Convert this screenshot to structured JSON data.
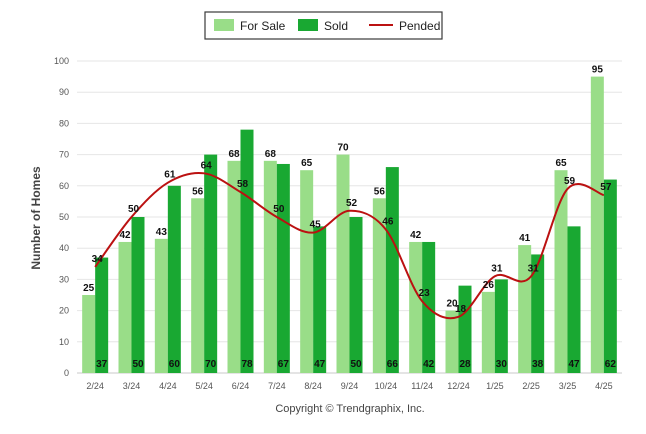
{
  "chart_data": {
    "type": "bar",
    "ylabel": "Number of Homes",
    "ylim": [
      0,
      100
    ],
    "yticks": [
      0,
      10,
      20,
      30,
      40,
      50,
      60,
      70,
      80,
      90,
      100
    ],
    "grid": true,
    "legend_position": "top",
    "categories": [
      "2/24",
      "3/24",
      "4/24",
      "5/24",
      "6/24",
      "7/24",
      "8/24",
      "9/24",
      "10/24",
      "11/24",
      "12/24",
      "1/25",
      "2/25",
      "3/25",
      "4/25"
    ],
    "series": [
      {
        "name": "For Sale",
        "kind": "bar",
        "color": "#99dd88",
        "values": [
          25,
          42,
          43,
          56,
          68,
          68,
          65,
          70,
          56,
          42,
          20,
          26,
          41,
          65,
          95
        ]
      },
      {
        "name": "Sold",
        "kind": "bar",
        "color": "#19a832",
        "values": [
          37,
          50,
          60,
          70,
          78,
          67,
          47,
          50,
          66,
          42,
          28,
          30,
          38,
          47,
          62
        ]
      },
      {
        "name": "Pended",
        "kind": "line",
        "color": "#bb1111",
        "values": [
          34,
          50,
          61,
          64,
          58,
          50,
          45,
          52,
          46,
          23,
          18,
          31,
          31,
          59,
          57
        ]
      }
    ]
  },
  "footer": {
    "copyright": "Copyright © Trendgraphix, Inc."
  }
}
